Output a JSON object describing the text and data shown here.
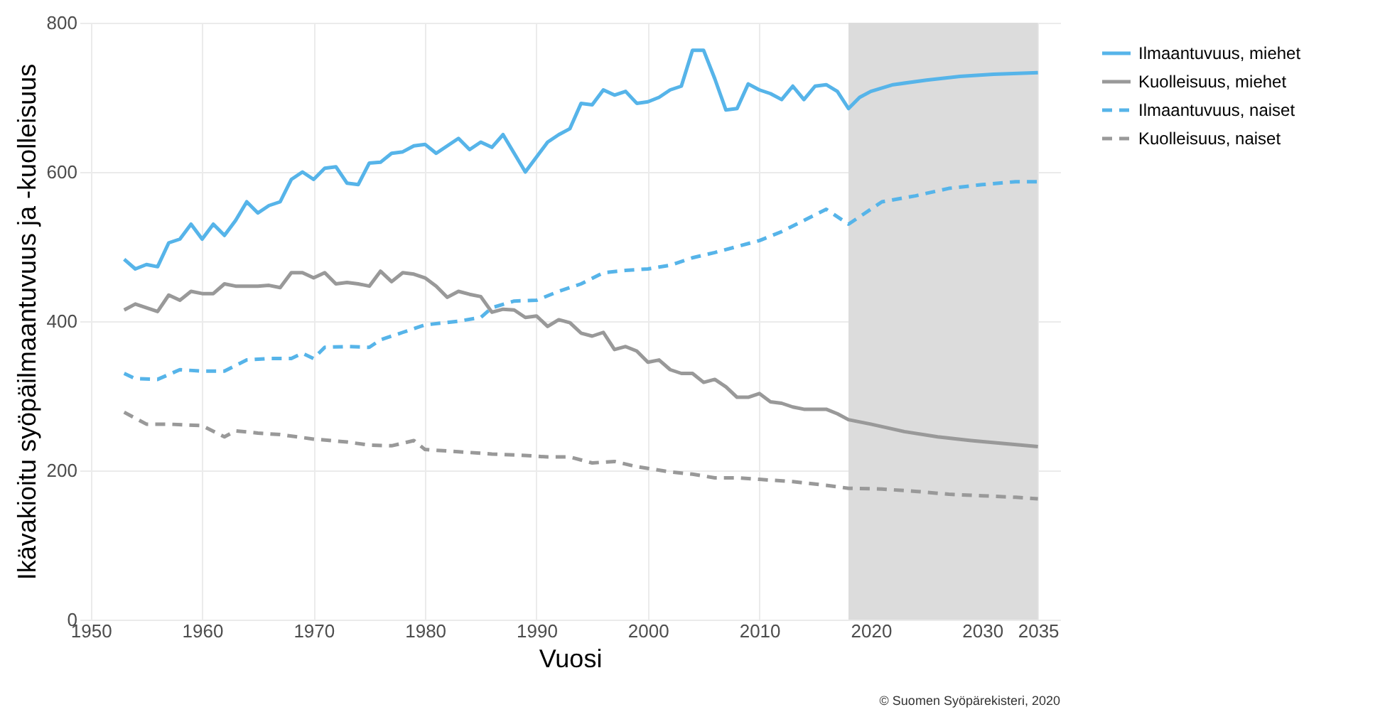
{
  "chart_data": {
    "type": "line",
    "xlabel": "Vuosi",
    "ylabel": "Ikävakioitu syöpäilmaantuvuus ja -kuolleisuus",
    "xlim": [
      1949,
      2037
    ],
    "xticks": [
      1950,
      1960,
      1970,
      1980,
      1990,
      2000,
      2010,
      2020,
      2030,
      2035
    ],
    "ylim": [
      0,
      800
    ],
    "yticks": [
      0,
      200,
      400,
      600,
      800
    ],
    "grid": true,
    "legend": "right",
    "annotations": [
      "© Suomen Syöpärekisteri, 2020"
    ],
    "bands": [
      {
        "axis": "x",
        "from": 2018,
        "to": 2035,
        "label": null,
        "color": "#dcdcdc"
      }
    ],
    "series": [
      {
        "name": "Ilmaantuvuus, miehet",
        "color": "#56b4e9",
        "line_style": "solid",
        "x": [
          1953,
          1954,
          1955,
          1956,
          1957,
          1958,
          1959,
          1960,
          1961,
          1962,
          1963,
          1964,
          1965,
          1966,
          1967,
          1968,
          1969,
          1970,
          1971,
          1972,
          1973,
          1974,
          1975,
          1976,
          1977,
          1978,
          1979,
          1980,
          1981,
          1982,
          1983,
          1984,
          1985,
          1986,
          1987,
          1988,
          1989,
          1990,
          1991,
          1992,
          1993,
          1994,
          1995,
          1996,
          1997,
          1998,
          1999,
          2000,
          2001,
          2002,
          2003,
          2004,
          2005,
          2006,
          2007,
          2008,
          2009,
          2010,
          2011,
          2012,
          2013,
          2014,
          2015,
          2016,
          2017,
          2018,
          2019,
          2020,
          2022,
          2025,
          2028,
          2031,
          2035
        ],
        "values": [
          483,
          470,
          476,
          473,
          505,
          510,
          530,
          510,
          530,
          515,
          535,
          560,
          545,
          555,
          560,
          590,
          600,
          590,
          605,
          607,
          585,
          583,
          612,
          613,
          625,
          627,
          635,
          637,
          625,
          635,
          645,
          630,
          640,
          633,
          650,
          625,
          600,
          620,
          640,
          650,
          658,
          692,
          690,
          710,
          703,
          708,
          692,
          694,
          700,
          710,
          715,
          763,
          763,
          725,
          683,
          685,
          718,
          710,
          705,
          697,
          715,
          697,
          715,
          717,
          708,
          685,
          700,
          708,
          717,
          723,
          728,
          731,
          733
        ]
      },
      {
        "name": "Kuolleisuus, miehet",
        "color": "#999999",
        "line_style": "solid",
        "x": [
          1953,
          1954,
          1955,
          1956,
          1957,
          1958,
          1959,
          1960,
          1961,
          1962,
          1963,
          1964,
          1965,
          1966,
          1967,
          1968,
          1969,
          1970,
          1971,
          1972,
          1973,
          1974,
          1975,
          1976,
          1977,
          1978,
          1979,
          1980,
          1981,
          1982,
          1983,
          1984,
          1985,
          1986,
          1987,
          1988,
          1989,
          1990,
          1991,
          1992,
          1993,
          1994,
          1995,
          1996,
          1997,
          1998,
          1999,
          2000,
          2001,
          2002,
          2003,
          2004,
          2005,
          2006,
          2007,
          2008,
          2009,
          2010,
          2011,
          2012,
          2013,
          2014,
          2015,
          2016,
          2017,
          2018,
          2020,
          2023,
          2026,
          2029,
          2032,
          2035
        ],
        "values": [
          415,
          423,
          418,
          413,
          435,
          428,
          440,
          437,
          437,
          450,
          447,
          447,
          447,
          448,
          445,
          465,
          465,
          458,
          465,
          450,
          452,
          450,
          447,
          467,
          453,
          465,
          463,
          458,
          447,
          432,
          440,
          436,
          433,
          412,
          416,
          415,
          405,
          407,
          393,
          402,
          398,
          384,
          380,
          385,
          362,
          366,
          360,
          345,
          348,
          335,
          330,
          330,
          318,
          322,
          312,
          298,
          298,
          303,
          292,
          290,
          285,
          282,
          282,
          282,
          276,
          268,
          262,
          252,
          245,
          240,
          236,
          232
        ]
      },
      {
        "name": "Ilmaantuvuus, naiset",
        "color": "#56b4e9",
        "line_style": "dashed",
        "x": [
          1953,
          1954,
          1956,
          1958,
          1960,
          1962,
          1964,
          1966,
          1968,
          1969,
          1970,
          1971,
          1973,
          1975,
          1976,
          1978,
          1980,
          1983,
          1985,
          1986,
          1988,
          1990,
          1992,
          1994,
          1996,
          1998,
          2000,
          2002,
          2004,
          2006,
          2008,
          2010,
          2012,
          2014,
          2016,
          2018,
          2019,
          2021,
          2024,
          2027,
          2030,
          2033,
          2035
        ],
        "values": [
          330,
          323,
          322,
          335,
          333,
          333,
          348,
          350,
          350,
          357,
          350,
          365,
          366,
          365,
          375,
          385,
          395,
          400,
          405,
          418,
          427,
          428,
          440,
          450,
          465,
          468,
          470,
          475,
          485,
          492,
          500,
          508,
          520,
          535,
          550,
          530,
          540,
          560,
          568,
          578,
          583,
          587,
          587
        ]
      },
      {
        "name": "Kuolleisuus, naiset",
        "color": "#999999",
        "line_style": "dashed",
        "x": [
          1953,
          1955,
          1957,
          1960,
          1962,
          1963,
          1965,
          1967,
          1970,
          1973,
          1975,
          1977,
          1979,
          1980,
          1983,
          1986,
          1989,
          1991,
          1993,
          1995,
          1997,
          1999,
          2002,
          2004,
          2006,
          2008,
          2010,
          2013,
          2016,
          2018,
          2021,
          2024,
          2027,
          2030,
          2033,
          2035
        ],
        "values": [
          278,
          262,
          262,
          260,
          245,
          253,
          250,
          248,
          242,
          238,
          234,
          233,
          240,
          228,
          225,
          222,
          220,
          218,
          218,
          210,
          212,
          205,
          198,
          195,
          190,
          190,
          188,
          185,
          180,
          176,
          175,
          172,
          168,
          166,
          164,
          162
        ]
      }
    ]
  }
}
